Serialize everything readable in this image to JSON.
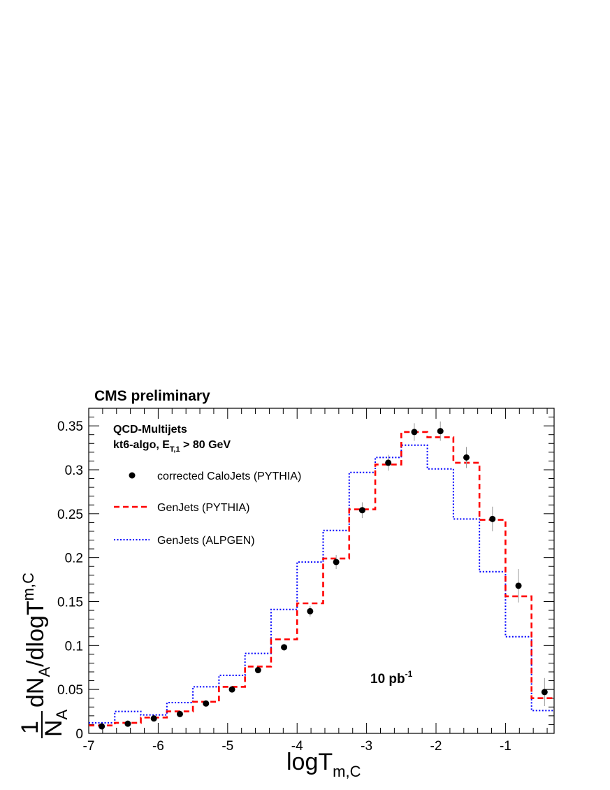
{
  "chart_data": {
    "type": "line",
    "header": "CMS preliminary",
    "annotation": {
      "process": "QCD-Multijets",
      "algo_prefix": "kt6-algo, E",
      "algo_sub": "T,1",
      "algo_suffix": " > 80 GeV",
      "lumi_main": "10 pb",
      "lumi_sup": "-1"
    },
    "xlabel": {
      "main": "logT",
      "sub": "m,C"
    },
    "ylabel": {
      "frac_num": "1",
      "frac_den_main": "N",
      "frac_den_sub": "A",
      "main1": "dN",
      "sub1": "A",
      "main2": "/dlogT",
      "sub2": "m,C"
    },
    "xlim": [
      -7,
      -0.3
    ],
    "ylim": [
      0,
      0.37
    ],
    "xticks": [
      -7,
      -6,
      -5,
      -4,
      -3,
      -2,
      -1
    ],
    "xtick_labels": [
      "-7",
      "-6",
      "-5",
      "-4",
      "-3",
      "-2",
      "-1"
    ],
    "yticks": [
      0,
      0.05,
      0.1,
      0.15,
      0.2,
      0.25,
      0.3,
      0.35
    ],
    "ytick_labels": [
      "0",
      "0.05",
      "0.1",
      "0.15",
      "0.2",
      "0.25",
      "0.3",
      "0.35"
    ],
    "bin_edges": [
      -7,
      -6.625,
      -6.25,
      -5.875,
      -5.5,
      -5.125,
      -4.75,
      -4.375,
      -4,
      -3.625,
      -3.25,
      -2.875,
      -2.5,
      -2.125,
      -1.75,
      -1.375,
      -1,
      -0.625,
      -0.25
    ],
    "series": [
      {
        "name": "corrected CaloJets (PYTHIA)",
        "style": "points",
        "color": "#000000",
        "values": [
          0.008,
          0.011,
          0.017,
          0.022,
          0.034,
          0.05,
          0.072,
          0.098,
          0.139,
          0.195,
          0.254,
          0.308,
          0.343,
          0.344,
          0.314,
          0.244,
          0.168,
          0.047
        ],
        "errors": [
          0.001,
          0.001,
          0.002,
          0.002,
          0.002,
          0.003,
          0.003,
          0.004,
          0.006,
          0.008,
          0.009,
          0.009,
          0.01,
          0.011,
          0.012,
          0.014,
          0.019,
          0.016
        ]
      },
      {
        "name": "GenJets (PYTHIA)",
        "style": "dashed-step",
        "color": "#ff0000",
        "values": [
          0.009,
          0.012,
          0.018,
          0.025,
          0.036,
          0.053,
          0.076,
          0.107,
          0.148,
          0.199,
          0.255,
          0.306,
          0.343,
          0.337,
          0.308,
          0.243,
          0.156,
          0.04
        ]
      },
      {
        "name": "GenJets (ALPGEN)",
        "style": "dotted-step",
        "color": "#0000ff",
        "values": [
          0.012,
          0.025,
          0.021,
          0.035,
          0.053,
          0.066,
          0.091,
          0.141,
          0.195,
          0.231,
          0.297,
          0.314,
          0.328,
          0.301,
          0.244,
          0.184,
          0.11,
          0.026
        ]
      }
    ],
    "legend_position": "top-left",
    "grid": false
  }
}
